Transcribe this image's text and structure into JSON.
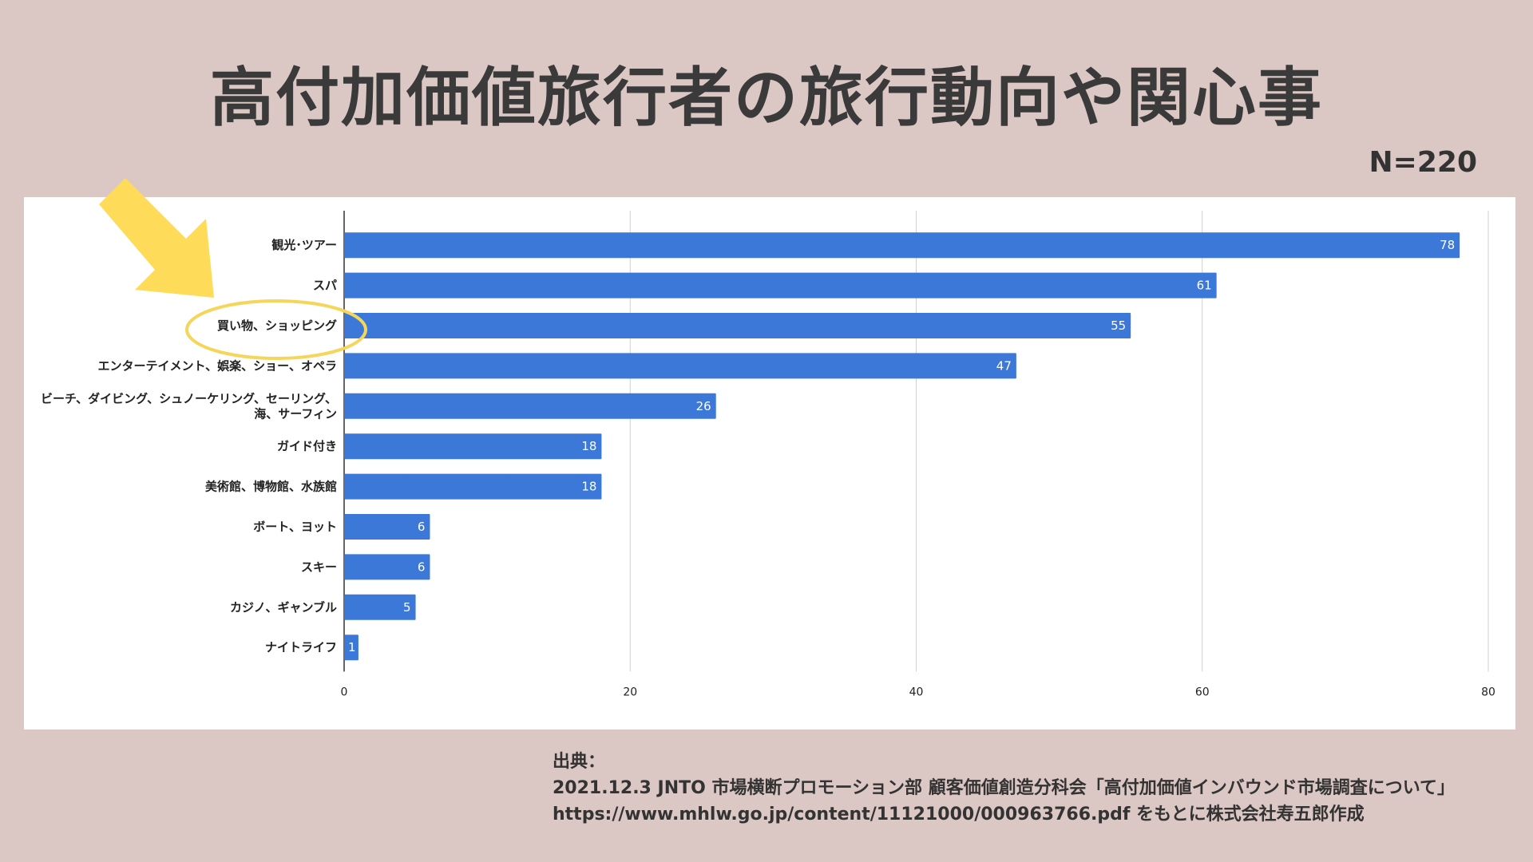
{
  "page": {
    "title": "高付加価値旅行者の旅行動向や関心事",
    "n_label": "N=220"
  },
  "colors": {
    "background": "#dbc7c3",
    "bar": "#3b78d8",
    "highlight_ellipse": "#f5d65a",
    "arrow": "#ffdb5a",
    "title": "#3a3a3a"
  },
  "chart_data": {
    "type": "bar",
    "orientation": "horizontal",
    "categories": [
      "観光･ツアー",
      "スパ",
      "買い物、ショッピング",
      "エンターテイメント、娯楽、ショー、オペラ",
      "ビーチ、ダイビング、シュノーケリング、セーリング、\n海、サーフィン",
      "ガイド付き",
      "美術館、博物館、水族館",
      "ボート、ヨット",
      "スキー",
      "カジノ、ギャンブル",
      "ナイトライフ"
    ],
    "values": [
      78,
      61,
      55,
      47,
      26,
      18,
      18,
      6,
      6,
      5,
      1
    ],
    "xlim": [
      0,
      80
    ],
    "xticks": [
      0,
      20,
      40,
      60,
      80
    ],
    "grid": true,
    "data_labels": true,
    "highlighted_category": "買い物、ショッピング"
  },
  "source": {
    "heading": "出典：",
    "line1": "2021.12.3 JNTO 市場横断プロモーション部 顧客価値創造分科会「高付加価値インバウンド市場調査について」",
    "line2": "https://www.mhlw.go.jp/content/11121000/000963766.pdf をもとに株式会社寿五郎作成"
  }
}
